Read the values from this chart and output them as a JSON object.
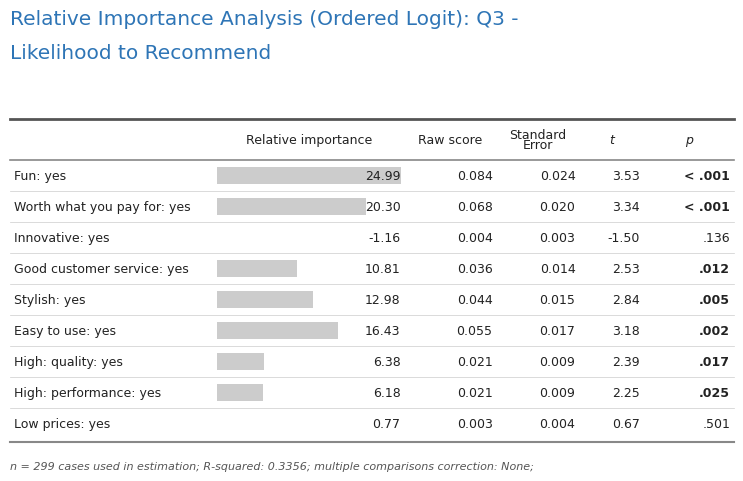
{
  "title_line1": "Relative Importance Analysis (Ordered Logit): Q3 -",
  "title_line2": "Likelihood to Recommend",
  "title_color": "#2E75B6",
  "title_fontsize": 14.5,
  "rows": [
    {
      "label": "Fun: yes",
      "rel_imp": 24.99,
      "rel_imp_str": "24.99",
      "raw": "0.084",
      "se": "0.024",
      "t": "3.53",
      "p": "< .001",
      "p_bold": true,
      "bar": true
    },
    {
      "label": "Worth what you pay for: yes",
      "rel_imp": 20.3,
      "rel_imp_str": "20.30",
      "raw": "0.068",
      "se": "0.020",
      "t": "3.34",
      "p": "< .001",
      "p_bold": true,
      "bar": true
    },
    {
      "label": "Innovative: yes",
      "rel_imp": -1.16,
      "rel_imp_str": "-1.16",
      "raw": "0.004",
      "se": "0.003",
      "t": "-1.50",
      "p": ".136",
      "p_bold": false,
      "bar": false
    },
    {
      "label": "Good customer service: yes",
      "rel_imp": 10.81,
      "rel_imp_str": "10.81",
      "raw": "0.036",
      "se": "0.014",
      "t": "2.53",
      "p": ".012",
      "p_bold": true,
      "bar": true
    },
    {
      "label": "Stylish: yes",
      "rel_imp": 12.98,
      "rel_imp_str": "12.98",
      "raw": "0.044",
      "se": "0.015",
      "t": "2.84",
      "p": ".005",
      "p_bold": true,
      "bar": true
    },
    {
      "label": "Easy to use: yes",
      "rel_imp": 16.43,
      "rel_imp_str": "16.43",
      "raw": "0.055",
      "se": "0.017",
      "t": "3.18",
      "p": ".002",
      "p_bold": true,
      "bar": true
    },
    {
      "label": "High: quality: yes",
      "rel_imp": 6.38,
      "rel_imp_str": "6.38",
      "raw": "0.021",
      "se": "0.009",
      "t": "2.39",
      "p": ".017",
      "p_bold": true,
      "bar": true
    },
    {
      "label": "High: performance: yes",
      "rel_imp": 6.18,
      "rel_imp_str": "6.18",
      "raw": "0.021",
      "se": "0.009",
      "t": "2.25",
      "p": ".025",
      "p_bold": true,
      "bar": true
    },
    {
      "label": "Low prices: yes",
      "rel_imp": 0.77,
      "rel_imp_str": "0.77",
      "raw": "0.003",
      "se": "0.004",
      "t": "0.67",
      "p": ".501",
      "p_bold": false,
      "bar": false
    }
  ],
  "footnote": "n = 299 cases used in estimation; R-squared: 0.3356; multiple comparisons correction: None;",
  "bar_color": "#CCCCCC",
  "bar_max": 24.99,
  "bg_color": "#FFFFFF",
  "header_top_line_color": "#555555",
  "header_bot_line_color": "#888888",
  "table_bot_line_color": "#888888",
  "row_line_color": "#CCCCCC",
  "text_color": "#222222",
  "footnote_color": "#555555",
  "font_size": 9,
  "title_font_size": 14.5,
  "footnote_font_size": 8
}
